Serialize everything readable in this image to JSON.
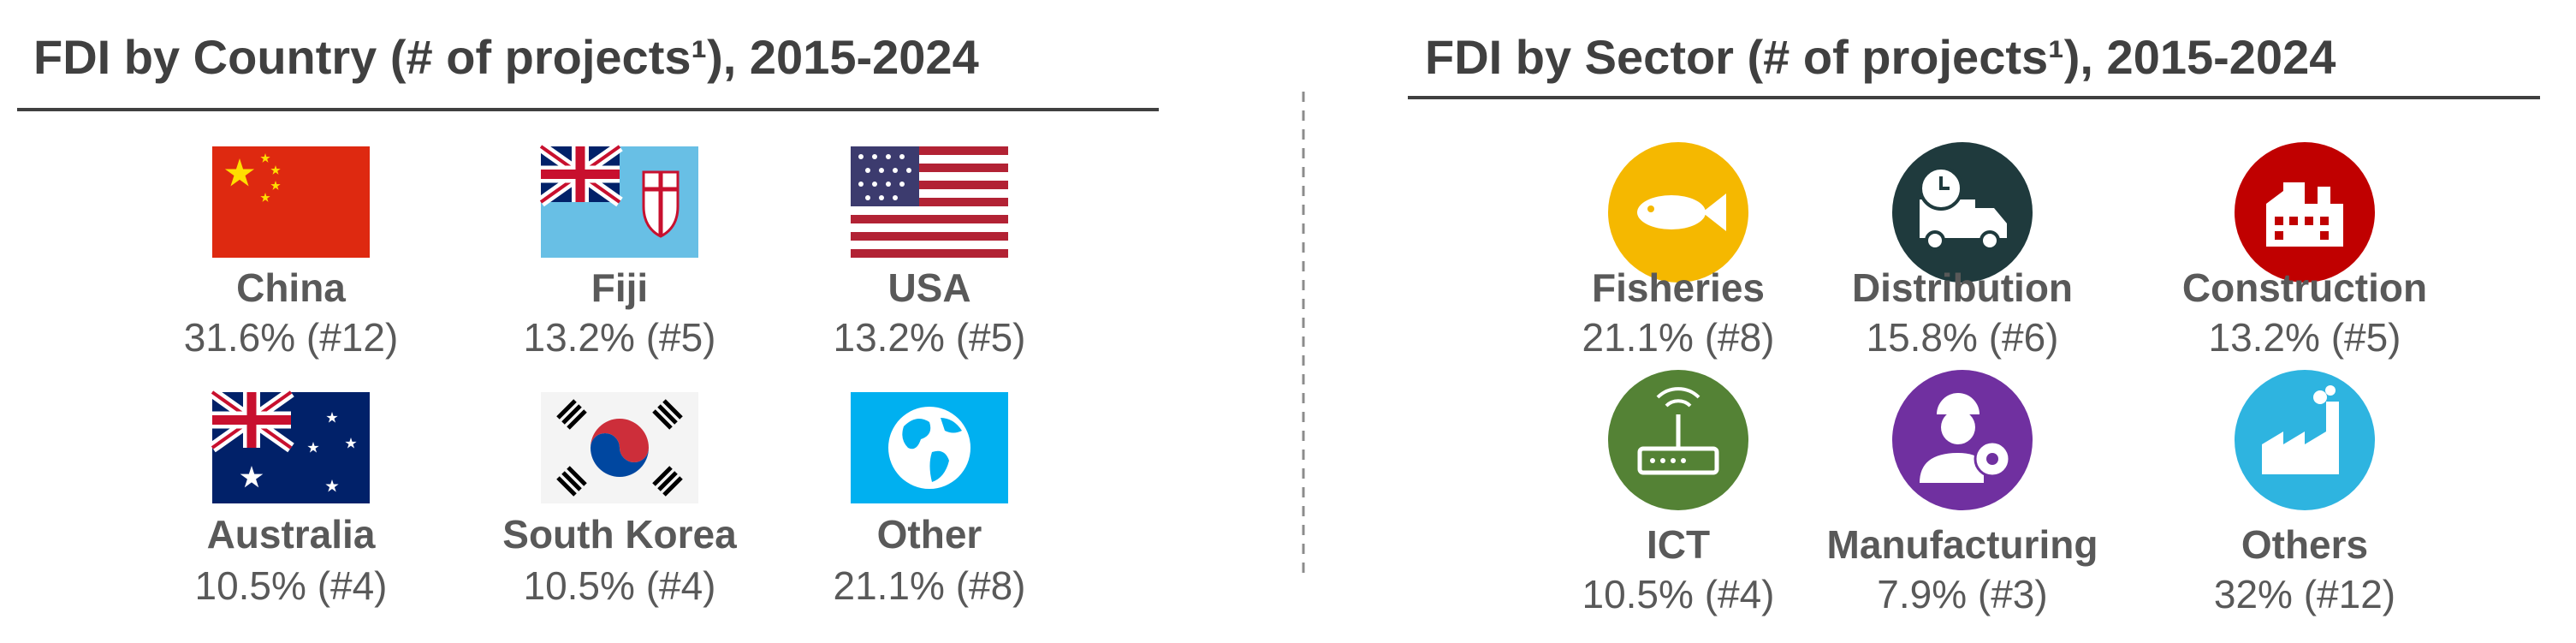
{
  "panels": [
    {
      "title": "FDI by Country (# of projects¹), 2015-2024",
      "items": [
        {
          "label": "China",
          "value": "31.6% (#12)"
        },
        {
          "label": "Fiji",
          "value": "13.2% (#5)"
        },
        {
          "label": "USA",
          "value": "13.2% (#5)"
        },
        {
          "label": "Australia",
          "value": "10.5% (#4)"
        },
        {
          "label": "South Korea",
          "value": "10.5% (#4)"
        },
        {
          "label": "Other",
          "value": "21.1% (#8)"
        }
      ]
    },
    {
      "title": "FDI by Sector (# of projects¹), 2015-2024",
      "items": [
        {
          "label": "Fisheries",
          "value": "21.1% (#8)"
        },
        {
          "label": "Distribution",
          "value": "15.8% (#6)"
        },
        {
          "label": "Construction",
          "value": "13.2% (#5)"
        },
        {
          "label": "ICT",
          "value": "10.5% (#4)"
        },
        {
          "label": "Manufacturing",
          "value": "7.9% (#3)"
        },
        {
          "label": "Others",
          "value": "32% (#12)"
        }
      ]
    }
  ]
}
